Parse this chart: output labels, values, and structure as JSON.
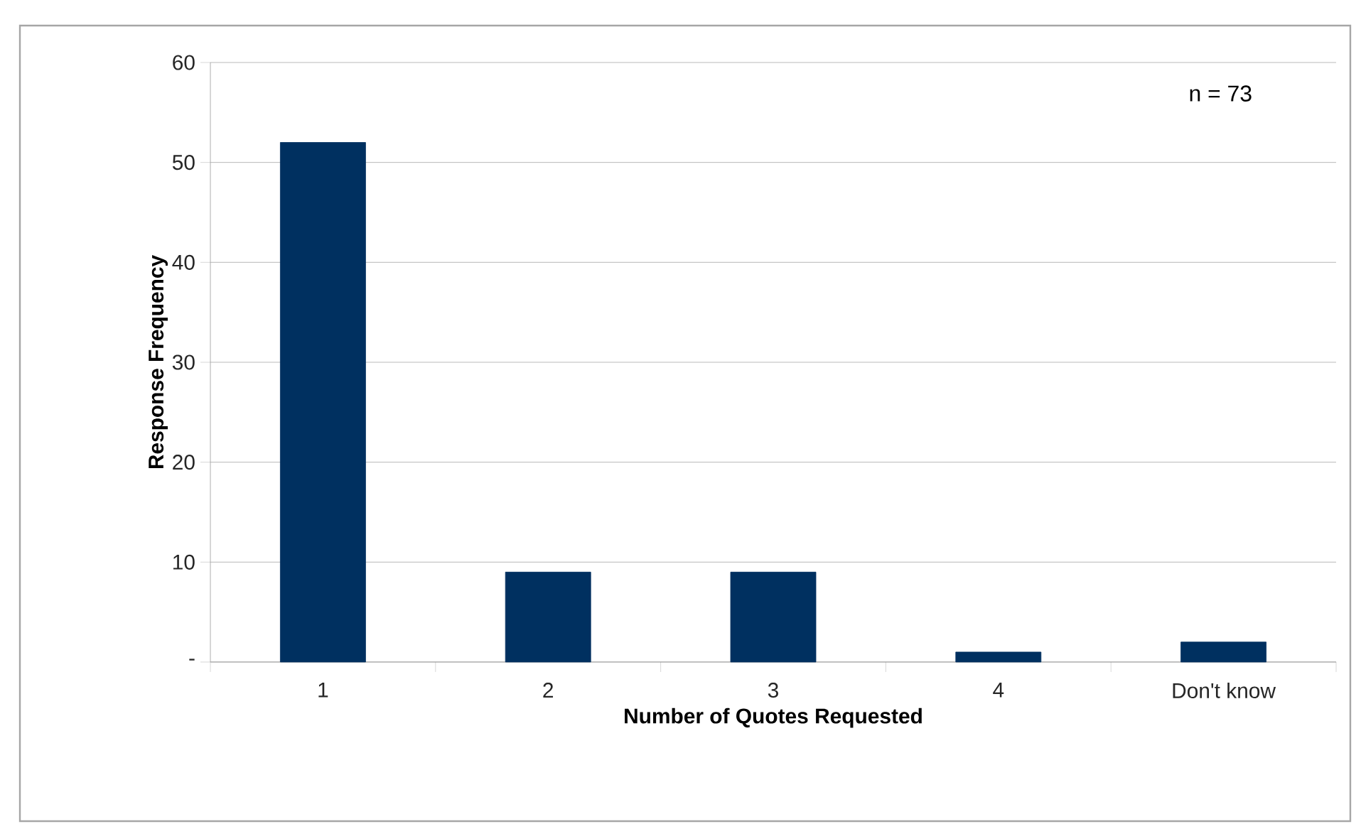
{
  "chart_data": {
    "type": "bar",
    "xlabel": "Number of Quotes Requested",
    "ylabel": "Response Frequency",
    "categories": [
      "1",
      "2",
      "3",
      "4",
      "Don't know"
    ],
    "values": [
      52,
      9,
      9,
      1,
      2
    ],
    "color": "#003060",
    "ylim": [
      0,
      60
    ],
    "yticks": [
      {
        "value": 0,
        "label": "-"
      },
      10,
      20,
      30,
      40,
      50,
      60
    ],
    "grid": "y",
    "annotations": [
      "n = 73"
    ]
  }
}
